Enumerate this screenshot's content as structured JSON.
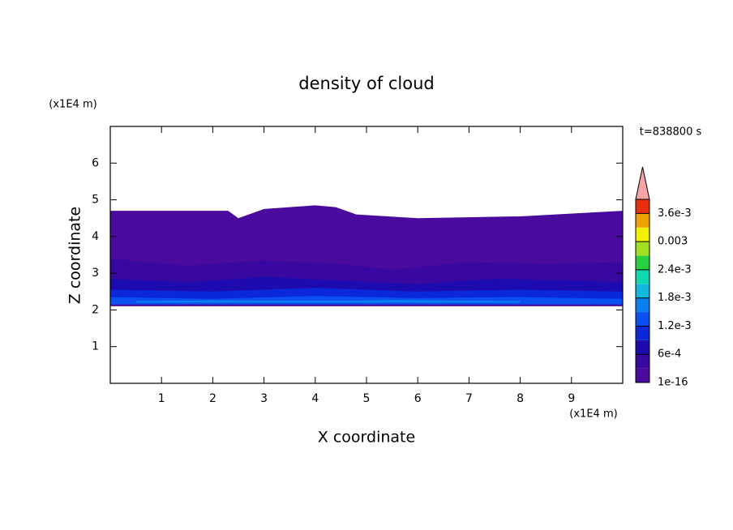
{
  "chart_data": {
    "type": "contour",
    "title": "density of cloud",
    "annotation": "t=838800 s",
    "x_label": "X coordinate",
    "y_label": "Z coordinate",
    "x_unit": "(x1E4 m)",
    "y_unit": "(x1E4 m)",
    "xlim": [
      0,
      10
    ],
    "ylim": [
      0,
      7
    ],
    "xticks": [
      1,
      2,
      3,
      4,
      5,
      6,
      7,
      8,
      9
    ],
    "yticks": [
      1,
      2,
      3,
      4,
      5,
      6
    ],
    "levels": [
      1e-16,
      0.0003,
      0.0006,
      0.0009,
      0.0012,
      0.0015,
      0.0018,
      0.0021,
      0.0024,
      0.0027,
      0.003,
      0.0033,
      0.0036,
      0.0039
    ],
    "level_colors": [
      "#4a0a9e",
      "#3808a0",
      "#1c0cb0",
      "#0a28d8",
      "#0a50f0",
      "#0a80f0",
      "#10b8e0",
      "#10d8b0",
      "#28d040",
      "#a0e020",
      "#f0f000",
      "#f0a000",
      "#e83010"
    ],
    "extend_color": "#f4a4a4",
    "colorbar_ticks": [
      {
        "value": 1e-16,
        "label": "1e-16"
      },
      {
        "value": 0.0006,
        "label": "6e-4"
      },
      {
        "value": 0.0012,
        "label": "1.2e-3"
      },
      {
        "value": 0.0018,
        "label": "1.8e-3"
      },
      {
        "value": 0.0024,
        "label": "2.4e-3"
      },
      0.003,
      {
        "value": 0.0036,
        "label": "3.6e-3"
      }
    ],
    "regions": [
      {
        "level": 1e-16,
        "x": [
          0,
          2.3,
          2.5,
          3.0,
          4.0,
          4.4,
          4.8,
          6,
          8,
          10
        ],
        "top": [
          4.7,
          4.7,
          4.5,
          4.75,
          4.85,
          4.8,
          4.6,
          4.5,
          4.55,
          4.7
        ],
        "bottom": [
          2.1,
          2.1,
          2.1,
          2.1,
          2.1,
          2.1,
          2.1,
          2.1,
          2.1,
          2.1
        ]
      },
      {
        "level": 0.0003,
        "x": [
          0,
          1.5,
          3,
          4.5,
          5.5,
          7,
          8.5,
          10
        ],
        "top": [
          3.4,
          3.2,
          3.35,
          3.25,
          3.1,
          3.3,
          3.25,
          3.3
        ],
        "bottom": [
          2.2,
          2.2,
          2.2,
          2.2,
          2.2,
          2.2,
          2.2,
          2.2
        ]
      },
      {
        "level": 0.0006,
        "x": [
          0,
          1.5,
          3,
          4.5,
          6,
          7.5,
          9,
          10
        ],
        "top": [
          2.85,
          2.75,
          2.9,
          2.8,
          2.7,
          2.85,
          2.8,
          2.75
        ],
        "bottom": [
          2.18,
          2.18,
          2.18,
          2.18,
          2.18,
          2.18,
          2.18,
          2.18
        ]
      },
      {
        "level": 0.0009,
        "x": [
          0,
          2,
          4,
          6,
          8,
          10
        ],
        "top": [
          2.55,
          2.5,
          2.6,
          2.5,
          2.55,
          2.5
        ],
        "bottom": [
          2.15,
          2.15,
          2.15,
          2.15,
          2.15,
          2.15
        ]
      },
      {
        "level": 0.0012,
        "x": [
          0,
          2,
          4,
          6,
          8,
          10
        ],
        "top": [
          2.35,
          2.3,
          2.38,
          2.32,
          2.35,
          2.3
        ],
        "bottom": [
          2.15,
          2.15,
          2.15,
          2.15,
          2.15,
          2.15
        ]
      },
      {
        "level": 0.0015,
        "x": [
          0.5,
          2,
          4.5,
          5.5,
          8
        ],
        "top": [
          2.24,
          2.26,
          2.25,
          2.27,
          2.24
        ],
        "bottom": [
          2.2,
          2.2,
          2.2,
          2.2,
          2.2
        ]
      }
    ]
  }
}
